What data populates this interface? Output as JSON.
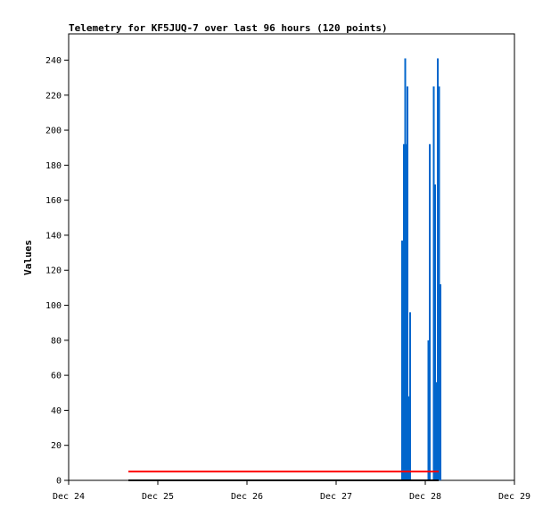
{
  "chart_data": {
    "type": "bar",
    "title": "Telemetry for KF5JUQ-7 over last 96 hours (120 points)",
    "ylabel": "Values",
    "xlabel": "",
    "ylim": [
      0,
      255
    ],
    "xlim": [
      0,
      5
    ],
    "x_tick_labels": [
      "Dec 24",
      "Dec 25",
      "Dec 26",
      "Dec 27",
      "Dec 28",
      "Dec 29"
    ],
    "y_ticks": [
      0,
      20,
      40,
      60,
      80,
      100,
      120,
      140,
      160,
      180,
      200,
      220,
      240
    ],
    "grid": false,
    "series": [
      {
        "color": "#0066cc",
        "style": "bars",
        "points": [
          [
            3.74,
            137
          ],
          [
            3.76,
            192
          ],
          [
            3.775,
            241
          ],
          [
            3.79,
            192
          ],
          [
            3.8,
            225
          ],
          [
            3.815,
            48
          ],
          [
            3.83,
            96
          ],
          [
            4.035,
            80
          ],
          [
            4.05,
            192
          ],
          [
            4.095,
            225
          ],
          [
            4.11,
            169
          ],
          [
            4.125,
            56
          ],
          [
            4.14,
            241
          ],
          [
            4.155,
            225
          ],
          [
            4.17,
            112
          ]
        ]
      },
      {
        "color": "#ff0000",
        "style": "line",
        "points": [
          [
            0.67,
            5
          ],
          [
            4.15,
            5
          ]
        ]
      },
      {
        "color": "#000000",
        "style": "line",
        "points": [
          [
            0.67,
            0
          ],
          [
            4.15,
            0
          ]
        ]
      }
    ]
  }
}
